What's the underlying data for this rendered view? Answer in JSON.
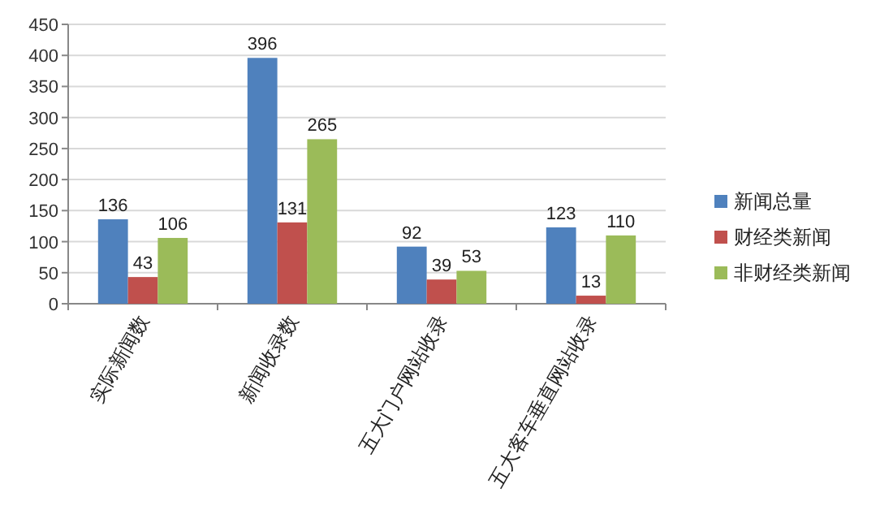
{
  "chart_data": {
    "type": "bar",
    "categories": [
      "实际新闻数",
      "新闻收录数",
      "五大门户网站收录",
      "五大客车垂直网站收录"
    ],
    "series": [
      {
        "name": "新闻总量",
        "color": "#4f81bd",
        "values": [
          136,
          396,
          92,
          123
        ]
      },
      {
        "name": "财经类新闻",
        "color": "#c0504d",
        "values": [
          43,
          131,
          39,
          13
        ]
      },
      {
        "name": "非财经类新闻",
        "color": "#9bbb59",
        "values": [
          106,
          265,
          53,
          110
        ]
      }
    ],
    "ylim": [
      0,
      450
    ],
    "yticks": [
      0,
      50,
      100,
      150,
      200,
      250,
      300,
      350,
      400,
      450
    ],
    "grid": "y",
    "legend": "right",
    "data_labels": true
  }
}
